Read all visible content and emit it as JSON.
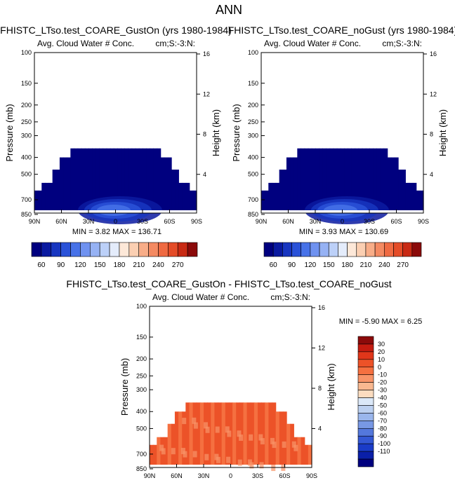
{
  "figure": {
    "title": "ANN"
  },
  "colormap_main": [
    "#00007f",
    "#0a1aa0",
    "#1836c0",
    "#2a52d8",
    "#4772e8",
    "#6f92f0",
    "#96b2f4",
    "#bcd0f8",
    "#e4ecfb",
    "#fde8d8",
    "#fbcfb2",
    "#f8ad88",
    "#f48a62",
    "#ef6a42",
    "#e44c28",
    "#c82a14",
    "#8b0a0a"
  ],
  "colormap_diff": [
    "#8b0a0a",
    "#c41b10",
    "#e0361a",
    "#ec5228",
    "#f57040",
    "#f89468",
    "#f9b890",
    "#fbdcc0",
    "#dbe8f8",
    "#bcd0f0",
    "#9ab6ec",
    "#7898e4",
    "#5478dc",
    "#3458d4",
    "#1a3cc8",
    "#0a1fa8",
    "#00007f"
  ],
  "chart_data": [
    {
      "type": "heatmap",
      "title": "FHISTC_LTso.test_COARE_GustOn (yrs 1980-1984)",
      "subtitle_left": "Avg. Cloud Water # Conc.",
      "subtitle_right": "cm;S:-3:N:",
      "ylabel": "Pressure (mb)",
      "y2label": "Height (km)",
      "x_ticks": [
        "90N",
        "60N",
        "30N",
        "0",
        "30S",
        "60S",
        "90S"
      ],
      "y_ticks": [
        100,
        150,
        200,
        250,
        300,
        400,
        500,
        700,
        850
      ],
      "y2_ticks": [
        16,
        12,
        8,
        4
      ],
      "stats": "MIN =   3.82   MAX = 136.71",
      "min": 3.82,
      "max": 136.71,
      "colorbar": {
        "orientation": "horizontal",
        "levels": [
          60,
          90,
          120,
          150,
          180,
          210,
          240,
          270
        ],
        "label_step": 2
      }
    },
    {
      "type": "heatmap",
      "title": "FHISTC_LTso.test_COARE_noGust (yrs 1980-1984)",
      "subtitle_left": "Avg. Cloud Water # Conc.",
      "subtitle_right": "cm;S:-3:N:",
      "ylabel": "Pressure (mb)",
      "y2label": "Height (km)",
      "x_ticks": [
        "90N",
        "60N",
        "30N",
        "0",
        "30S",
        "60S",
        "90S"
      ],
      "y_ticks": [
        100,
        150,
        200,
        250,
        300,
        400,
        500,
        700,
        850
      ],
      "y2_ticks": [
        16,
        12,
        8,
        4
      ],
      "stats": "MIN =   3.93   MAX = 130.69",
      "min": 3.93,
      "max": 130.69,
      "colorbar": {
        "orientation": "horizontal",
        "levels": [
          60,
          90,
          120,
          150,
          180,
          210,
          240,
          270
        ],
        "label_step": 2
      }
    },
    {
      "type": "heatmap",
      "title": "FHISTC_LTso.test_COARE_GustOn - FHISTC_LTso.test_COARE_noGust",
      "subtitle_left": "Avg. Cloud Water # Conc.",
      "subtitle_right": "cm;S:-3:N:",
      "ylabel": "Pressure (mb)",
      "y2label": "Height (km)",
      "x_ticks": [
        "90N",
        "60N",
        "30N",
        "0",
        "30S",
        "60S",
        "90S"
      ],
      "y_ticks": [
        100,
        150,
        200,
        250,
        300,
        400,
        500,
        700,
        850
      ],
      "y2_ticks": [
        16,
        12,
        8,
        4
      ],
      "stats": "MIN =  -5.90   MAX =   6.25",
      "min": -5.9,
      "max": 6.25,
      "colorbar": {
        "orientation": "vertical",
        "levels": [
          30,
          20,
          10,
          0,
          -10,
          -20,
          -30,
          -40,
          -50,
          -60,
          -70,
          -80,
          -90,
          -100,
          -110
        ]
      }
    }
  ]
}
